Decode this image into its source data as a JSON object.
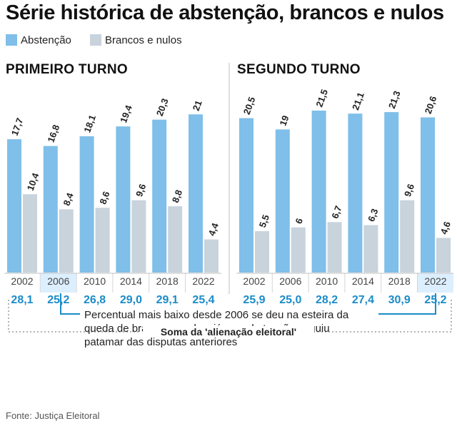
{
  "title": "Série histórica de abstenção, brancos e nulos",
  "legend": [
    {
      "label": "Abstenção",
      "color": "#7fbfe9"
    },
    {
      "label": "Brancos e nulos",
      "color": "#c8d3dc"
    }
  ],
  "panels": [
    {
      "title": "PRIMEIRO TURNO",
      "highlight_index": 1
    },
    {
      "title": "SEGUNDO TURNO",
      "highlight_index": 5
    }
  ],
  "callout": "Percentual mais baixo desde 2006 se deu na esteira da queda de brancos e nulos, já que abstenção seguiu patamar das disputas anteriores",
  "bracket_label": "Soma da 'alienação eleitoral'",
  "source": "Fonte: Justiça Eleitoral",
  "colors": {
    "abstencao": "#7fbfe9",
    "brancos": "#c8d3dc",
    "total_text": "#1b8cc9",
    "highlight_bg": "#dcefff"
  },
  "chart_data": [
    {
      "type": "bar",
      "title": "PRIMEIRO TURNO",
      "categories": [
        "2002",
        "2006",
        "2010",
        "2014",
        "2018",
        "2022"
      ],
      "series": [
        {
          "name": "Abstenção",
          "values": [
            17.7,
            16.8,
            18.1,
            19.4,
            20.3,
            21
          ],
          "labels": [
            "17,7",
            "16,8",
            "18,1",
            "19,4",
            "20,3",
            "21"
          ]
        },
        {
          "name": "Brancos e nulos",
          "values": [
            10.4,
            8.4,
            8.6,
            9.6,
            8.8,
            4.4
          ],
          "labels": [
            "10,4",
            "8,4",
            "8,6",
            "9,6",
            "8,8",
            "4,4"
          ]
        }
      ],
      "totals": [
        "28,1",
        "25,2",
        "26,8",
        "29,0",
        "29,1",
        "25,4"
      ],
      "ylim": [
        0,
        21.5
      ]
    },
    {
      "type": "bar",
      "title": "SEGUNDO TURNO",
      "categories": [
        "2002",
        "2006",
        "2010",
        "2014",
        "2018",
        "2022"
      ],
      "series": [
        {
          "name": "Abstenção",
          "values": [
            20.5,
            19,
            21.5,
            21.1,
            21.3,
            20.6
          ],
          "labels": [
            "20,5",
            "19",
            "21,5",
            "21,1",
            "21,3",
            "20,6"
          ]
        },
        {
          "name": "Brancos e nulos",
          "values": [
            5.5,
            6,
            6.7,
            6.3,
            9.6,
            4.6
          ],
          "labels": [
            "5,5",
            "6",
            "6,7",
            "6,3",
            "9,6",
            "4,6"
          ]
        }
      ],
      "totals": [
        "25,9",
        "25,0",
        "28,2",
        "27,4",
        "30,9",
        "25,2"
      ],
      "ylim": [
        0,
        21.5
      ]
    }
  ]
}
